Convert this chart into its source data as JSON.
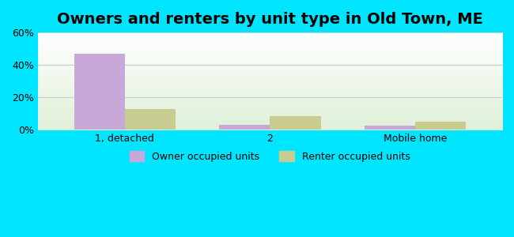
{
  "title": "Owners and renters by unit type in Old Town, ME",
  "categories": [
    "1, detached",
    "2",
    "Mobile home"
  ],
  "owner_values": [
    47,
    3,
    2.5
  ],
  "renter_values": [
    13,
    8.5,
    5
  ],
  "owner_color": "#c8a8d8",
  "renter_color": "#c8cc90",
  "ylim": [
    0,
    60
  ],
  "yticks": [
    0,
    20,
    40,
    60
  ],
  "ytick_labels": [
    "0%",
    "20%",
    "40%",
    "60%"
  ],
  "background_outer": "#00e5ff",
  "background_plot_top": "#ffffff",
  "background_plot_bottom": "#dff0d8",
  "grid_color": "#cccccc",
  "title_fontsize": 14,
  "bar_width": 0.35,
  "legend_owner": "Owner occupied units",
  "legend_renter": "Renter occupied units"
}
